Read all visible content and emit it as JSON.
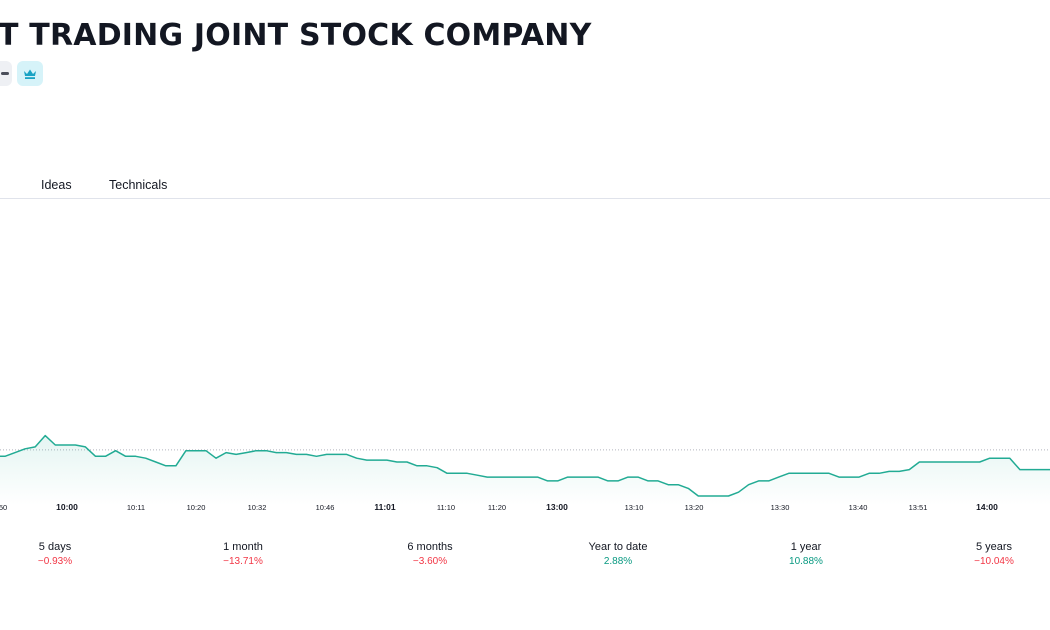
{
  "header": {
    "title": "T TRADING JOINT STOCK COMPANY"
  },
  "badges": [
    {
      "icon": "dash-icon"
    },
    {
      "icon": "crown-icon"
    }
  ],
  "tabs": [
    {
      "label": "Ideas"
    },
    {
      "label": "Technicals"
    }
  ],
  "colors": {
    "line": "#22ab94",
    "negative": "#f23645",
    "positive": "#089981",
    "reference_line": "#b2b5be"
  },
  "chart_data": {
    "type": "area",
    "x_tick_labels": [
      "50",
      "10:00",
      "10:11",
      "10:20",
      "10:32",
      "10:46",
      "11:01",
      "11:10",
      "11:20",
      "13:00",
      "13:10",
      "13:20",
      "13:30",
      "13:40",
      "13:51",
      "14:00"
    ],
    "bold_ticks": [
      "10:00",
      "11:01",
      "13:00",
      "14:00"
    ],
    "series": [
      {
        "values": [
          0.5,
          0.5,
          1.5,
          2.5,
          3,
          6,
          3.5,
          3.5,
          3.5,
          3,
          0.5,
          0.5,
          2,
          0.5,
          0.5,
          0,
          -1,
          -2,
          -2,
          2,
          2,
          2,
          0,
          1.5,
          1,
          1.5,
          2,
          2,
          1.5,
          1.5,
          1,
          1,
          0.5,
          1,
          1,
          1,
          0,
          -0.5,
          -0.5,
          -0.5,
          -1,
          -1,
          -2,
          -2,
          -2.5,
          -4,
          -4,
          -4,
          -4.5,
          -5,
          -5,
          -5,
          -5,
          -5,
          -5,
          -6,
          -6,
          -5,
          -5,
          -5,
          -5,
          -6,
          -6,
          -5,
          -5,
          -6,
          -6,
          -7,
          -7,
          -8,
          -10,
          -10,
          -10,
          -10,
          -9,
          -7,
          -6,
          -6,
          -5,
          -4,
          -4,
          -4,
          -4,
          -4,
          -5,
          -5,
          -5,
          -4,
          -4,
          -3.5,
          -3.5,
          -3,
          -1,
          -1,
          -1,
          -1,
          -1,
          -1,
          -1,
          0,
          0,
          0,
          -3,
          -3,
          -3,
          -3
        ],
        "reference_line": 2.2
      }
    ],
    "grid": false,
    "legend": "none"
  },
  "periods": [
    {
      "label": "5 days",
      "change": "−0.93%",
      "trend": "negative"
    },
    {
      "label": "1 month",
      "change": "−13.71%",
      "trend": "negative"
    },
    {
      "label": "6 months",
      "change": "−3.60%",
      "trend": "negative"
    },
    {
      "label": "Year to date",
      "change": "2.88%",
      "trend": "positive"
    },
    {
      "label": "1 year",
      "change": "10.88%",
      "trend": "positive"
    },
    {
      "label": "5 years",
      "change": "−10.04%",
      "trend": "negative"
    }
  ]
}
